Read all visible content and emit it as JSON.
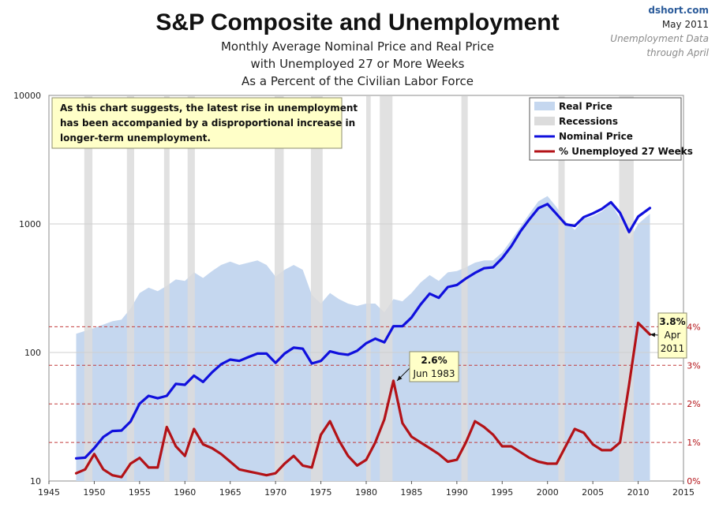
{
  "header": {
    "title": "S&P Composite and Unemployment",
    "subtitle_lines": [
      "Monthly Average Nominal Price and Real Price",
      "with Unemployed 27 or More Weeks",
      "As a Percent of the Civilian Labor Force"
    ],
    "source": "dshort.com",
    "date": "May 2011",
    "data_note_lines": [
      "Unemployment Data",
      "through April"
    ]
  },
  "note_box_lines": [
    "As this chart suggests, the latest rise in unemployment",
    "has been accompanied by a disproportional increase in",
    "longer-term unemployment."
  ],
  "legend": [
    {
      "label": "Real Price",
      "swatch": "area",
      "color": "#c5d7ef"
    },
    {
      "label": "Recessions",
      "swatch": "area",
      "color": "#dcdcdc"
    },
    {
      "label": "Nominal Price",
      "swatch": "line",
      "color": "#1010dd"
    },
    {
      "label": "% Unemployed 27 Weeks",
      "swatch": "line",
      "color": "#b31217"
    }
  ],
  "callouts": [
    {
      "value": "2.6%",
      "date": "Jun 1983",
      "x": 1983.4,
      "y": 2.6
    },
    {
      "value": "3.8%",
      "date_lines": [
        "Apr",
        "2011"
      ],
      "x": 2011.3,
      "y": 3.8
    }
  ],
  "chart_data": {
    "type": "line",
    "x_ticks": [
      "1945",
      "1950",
      "1955",
      "1960",
      "1965",
      "1970",
      "1975",
      "1980",
      "1985",
      "1990",
      "1995",
      "2000",
      "2005",
      "2010",
      "2015"
    ],
    "xlim": [
      1945,
      2015
    ],
    "y_left": {
      "scale": "log",
      "ylim": [
        10,
        10000
      ],
      "ticks": [
        "10",
        "100",
        "1000",
        "10000"
      ]
    },
    "y_right": {
      "ylim": [
        0,
        10
      ],
      "ticks": [
        "0%",
        "1%",
        "2%",
        "3%",
        "4%"
      ]
    },
    "recessions": [
      [
        1948.9,
        1949.8
      ],
      [
        1953.6,
        1954.4
      ],
      [
        1957.7,
        1958.3
      ],
      [
        1960.3,
        1961.1
      ],
      [
        1969.9,
        1970.9
      ],
      [
        1973.9,
        1975.2
      ],
      [
        1980.0,
        1980.5
      ],
      [
        1981.5,
        1982.9
      ],
      [
        1990.5,
        1991.2
      ],
      [
        2001.2,
        2001.9
      ],
      [
        2007.9,
        2009.5
      ]
    ],
    "series": [
      {
        "name": "Real Price",
        "kind": "area",
        "axis": "left",
        "points": [
          [
            1948,
            140
          ],
          [
            1950,
            155
          ],
          [
            1952,
            175
          ],
          [
            1953,
            180
          ],
          [
            1954,
            220
          ],
          [
            1955,
            290
          ],
          [
            1956,
            320
          ],
          [
            1957,
            300
          ],
          [
            1958,
            330
          ],
          [
            1959,
            370
          ],
          [
            1960,
            360
          ],
          [
            1961,
            420
          ],
          [
            1962,
            380
          ],
          [
            1963,
            430
          ],
          [
            1964,
            480
          ],
          [
            1965,
            510
          ],
          [
            1966,
            480
          ],
          [
            1967,
            500
          ],
          [
            1968,
            520
          ],
          [
            1969,
            480
          ],
          [
            1970,
            390
          ],
          [
            1971,
            440
          ],
          [
            1972,
            480
          ],
          [
            1973,
            440
          ],
          [
            1974,
            280
          ],
          [
            1975,
            240
          ],
          [
            1976,
            290
          ],
          [
            1977,
            260
          ],
          [
            1978,
            240
          ],
          [
            1979,
            230
          ],
          [
            1980,
            240
          ],
          [
            1981,
            240
          ],
          [
            1982,
            205
          ],
          [
            1983,
            260
          ],
          [
            1984,
            250
          ],
          [
            1985,
            290
          ],
          [
            1986,
            350
          ],
          [
            1987,
            400
          ],
          [
            1988,
            360
          ],
          [
            1989,
            420
          ],
          [
            1990,
            430
          ],
          [
            1991,
            460
          ],
          [
            1992,
            500
          ],
          [
            1993,
            520
          ],
          [
            1994,
            520
          ],
          [
            1995,
            600
          ],
          [
            1996,
            750
          ],
          [
            1997,
            950
          ],
          [
            1998,
            1200
          ],
          [
            1999,
            1500
          ],
          [
            2000,
            1650
          ],
          [
            2001,
            1350
          ],
          [
            2002,
            1050
          ],
          [
            2003,
            900
          ],
          [
            2004,
            1100
          ],
          [
            2005,
            1150
          ],
          [
            2006,
            1250
          ],
          [
            2007,
            1450
          ],
          [
            2008,
            1100
          ],
          [
            2009,
            750
          ],
          [
            2010,
            1000
          ],
          [
            2011.3,
            1200
          ]
        ]
      },
      {
        "name": "Nominal Price",
        "kind": "line",
        "axis": "left",
        "color": "#1010dd",
        "points": [
          [
            1948,
            15
          ],
          [
            1949,
            15.2
          ],
          [
            1950,
            18
          ],
          [
            1951,
            22
          ],
          [
            1952,
            24.5
          ],
          [
            1953,
            24.7
          ],
          [
            1954,
            29
          ],
          [
            1955,
            40
          ],
          [
            1956,
            46
          ],
          [
            1957,
            44
          ],
          [
            1958,
            46
          ],
          [
            1959,
            57
          ],
          [
            1960,
            56
          ],
          [
            1961,
            66
          ],
          [
            1962,
            59
          ],
          [
            1963,
            70
          ],
          [
            1964,
            81
          ],
          [
            1965,
            88
          ],
          [
            1966,
            86
          ],
          [
            1967,
            92
          ],
          [
            1968,
            98
          ],
          [
            1969,
            98
          ],
          [
            1970,
            83
          ],
          [
            1971,
            98
          ],
          [
            1972,
            109
          ],
          [
            1973,
            107
          ],
          [
            1974,
            82
          ],
          [
            1975,
            86
          ],
          [
            1976,
            102
          ],
          [
            1977,
            98
          ],
          [
            1978,
            96
          ],
          [
            1979,
            103
          ],
          [
            1980,
            118
          ],
          [
            1981,
            128
          ],
          [
            1982,
            120
          ],
          [
            1983,
            160
          ],
          [
            1984,
            160
          ],
          [
            1985,
            187
          ],
          [
            1986,
            236
          ],
          [
            1987,
            287
          ],
          [
            1988,
            266
          ],
          [
            1989,
            323
          ],
          [
            1990,
            335
          ],
          [
            1991,
            376
          ],
          [
            1992,
            416
          ],
          [
            1993,
            452
          ],
          [
            1994,
            460
          ],
          [
            1995,
            542
          ],
          [
            1996,
            670
          ],
          [
            1997,
            873
          ],
          [
            1998,
            1085
          ],
          [
            1999,
            1327
          ],
          [
            2000,
            1427
          ],
          [
            2001,
            1194
          ],
          [
            2002,
            994
          ],
          [
            2003,
            965
          ],
          [
            2004,
            1131
          ],
          [
            2005,
            1207
          ],
          [
            2006,
            1310
          ],
          [
            2007,
            1477
          ],
          [
            2008,
            1220
          ],
          [
            2009,
            865
          ],
          [
            2010,
            1140
          ],
          [
            2011.3,
            1330
          ]
        ]
      },
      {
        "name": "% Unemployed 27 Weeks",
        "kind": "line",
        "axis": "right",
        "color": "#b31217",
        "points": [
          [
            1948,
            0.2
          ],
          [
            1949,
            0.3
          ],
          [
            1950,
            0.7
          ],
          [
            1951,
            0.3
          ],
          [
            1952,
            0.15
          ],
          [
            1953,
            0.1
          ],
          [
            1954,
            0.45
          ],
          [
            1955,
            0.6
          ],
          [
            1956,
            0.35
          ],
          [
            1957,
            0.35
          ],
          [
            1958,
            1.4
          ],
          [
            1959,
            0.9
          ],
          [
            1960,
            0.65
          ],
          [
            1961,
            1.35
          ],
          [
            1962,
            0.95
          ],
          [
            1963,
            0.85
          ],
          [
            1964,
            0.7
          ],
          [
            1965,
            0.5
          ],
          [
            1966,
            0.3
          ],
          [
            1967,
            0.25
          ],
          [
            1968,
            0.2
          ],
          [
            1969,
            0.15
          ],
          [
            1970,
            0.2
          ],
          [
            1971,
            0.45
          ],
          [
            1972,
            0.65
          ],
          [
            1973,
            0.4
          ],
          [
            1974,
            0.35
          ],
          [
            1975,
            1.2
          ],
          [
            1976,
            1.55
          ],
          [
            1977,
            1.05
          ],
          [
            1978,
            0.65
          ],
          [
            1979,
            0.4
          ],
          [
            1980,
            0.55
          ],
          [
            1981,
            1.0
          ],
          [
            1982,
            1.6
          ],
          [
            1983,
            2.6
          ],
          [
            1984,
            1.5
          ],
          [
            1985,
            1.15
          ],
          [
            1986,
            1.0
          ],
          [
            1987,
            0.85
          ],
          [
            1988,
            0.7
          ],
          [
            1989,
            0.5
          ],
          [
            1990,
            0.55
          ],
          [
            1991,
            1.0
          ],
          [
            1992,
            1.55
          ],
          [
            1993,
            1.4
          ],
          [
            1994,
            1.2
          ],
          [
            1995,
            0.9
          ],
          [
            1996,
            0.9
          ],
          [
            1997,
            0.75
          ],
          [
            1998,
            0.6
          ],
          [
            1999,
            0.5
          ],
          [
            2000,
            0.45
          ],
          [
            2001,
            0.45
          ],
          [
            2002,
            0.9
          ],
          [
            2003,
            1.35
          ],
          [
            2004,
            1.25
          ],
          [
            2005,
            0.95
          ],
          [
            2006,
            0.8
          ],
          [
            2007,
            0.8
          ],
          [
            2008,
            1.0
          ],
          [
            2009,
            2.5
          ],
          [
            2010,
            4.1
          ],
          [
            2011.3,
            3.8
          ]
        ]
      }
    ]
  }
}
